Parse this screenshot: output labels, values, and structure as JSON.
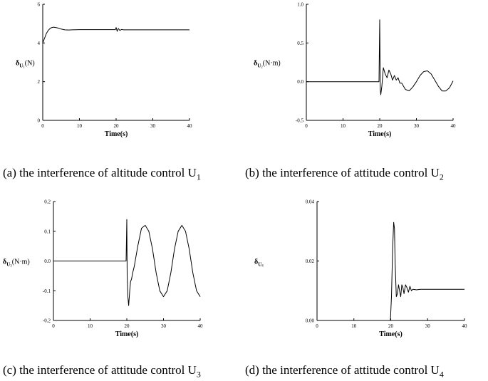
{
  "captions": [
    {
      "text": "(a) the interference of altitude control U",
      "sub": "1"
    },
    {
      "text": "(b) the interference of attitude control U",
      "sub": "2"
    },
    {
      "text": "(c) the interference of attitude control U",
      "sub": "3"
    },
    {
      "text": "(d) the interference of attitude control U",
      "sub": "4"
    }
  ],
  "chart_data": [
    {
      "type": "line",
      "xlabel": "Time(s)",
      "ylabel": {
        "prefix": "δ",
        "sub": "U",
        "subsub": "1",
        "unit": "(N)"
      },
      "xlim": [
        0,
        40
      ],
      "ylim": [
        0,
        6
      ],
      "xticks": [
        0,
        10,
        20,
        30,
        40
      ],
      "yticks": [
        0,
        2,
        4,
        6
      ],
      "ytick_labels": [
        "0",
        "2",
        "4",
        "6"
      ],
      "series": [
        {
          "x": [
            0,
            0.5,
            1,
            1.5,
            2,
            2.5,
            3,
            3.5,
            4,
            5,
            6,
            7,
            8,
            10,
            15,
            19.8,
            20,
            20.3,
            20.6,
            21,
            21.5,
            22,
            25,
            30,
            40
          ],
          "y": [
            4.0,
            4.25,
            4.5,
            4.65,
            4.75,
            4.8,
            4.82,
            4.8,
            4.78,
            4.72,
            4.68,
            4.67,
            4.68,
            4.69,
            4.69,
            4.69,
            4.8,
            4.6,
            4.75,
            4.65,
            4.7,
            4.68,
            4.68,
            4.68,
            4.68
          ]
        }
      ]
    },
    {
      "type": "line",
      "xlabel": "Time(s)",
      "ylabel": {
        "prefix": "δ",
        "sub": "U",
        "subsub": "2",
        "unit": "(N·m)"
      },
      "xlim": [
        0,
        40
      ],
      "ylim": [
        -0.5,
        1.0
      ],
      "xticks": [
        0,
        10,
        20,
        30,
        40
      ],
      "yticks": [
        -0.5,
        0,
        0.5,
        1.0
      ],
      "ytick_labels": [
        "-0.5",
        "0.0",
        "0.5",
        "1.0"
      ],
      "series": [
        {
          "x": [
            0,
            19.8,
            20,
            20.15,
            20.3,
            20.6,
            21,
            21.5,
            22,
            22.5,
            23,
            23.5,
            24,
            24.5,
            25,
            25.5,
            26,
            27,
            28,
            29,
            30,
            31,
            32,
            33,
            34,
            35,
            36,
            37,
            38,
            39,
            40
          ],
          "y": [
            0,
            0,
            0.8,
            -0.1,
            -0.17,
            -0.05,
            0.18,
            0.1,
            0.05,
            0.15,
            0.1,
            0.02,
            0.08,
            0.02,
            0.05,
            -0.02,
            -0.02,
            -0.1,
            -0.12,
            -0.07,
            0,
            0.08,
            0.13,
            0.14,
            0.1,
            0.02,
            -0.06,
            -0.12,
            -0.12,
            -0.08,
            0.01
          ]
        }
      ]
    },
    {
      "type": "line",
      "xlabel": "Time(s)",
      "ylabel": {
        "prefix": "δ",
        "sub": "U",
        "subsub": "3",
        "unit": "(N·m)"
      },
      "xlim": [
        0,
        40
      ],
      "ylim": [
        -0.2,
        0.2
      ],
      "xticks": [
        0,
        10,
        20,
        30,
        40
      ],
      "yticks": [
        -0.2,
        -0.1,
        0,
        0.1,
        0.2
      ],
      "ytick_labels": [
        "-0.2",
        "-0.1",
        "0.0",
        "0.1",
        "0.2"
      ],
      "series": [
        {
          "x": [
            0,
            19.8,
            20,
            20.1,
            20.3,
            20.5,
            20.8,
            21,
            21.3,
            21.6,
            22,
            23,
            24,
            25,
            26,
            27,
            28,
            29,
            30,
            31,
            32,
            33,
            34,
            35,
            36,
            37,
            38,
            39,
            40
          ],
          "y": [
            0,
            0,
            0.14,
            -0.05,
            -0.12,
            -0.15,
            -0.1,
            -0.07,
            -0.06,
            -0.04,
            -0.02,
            0.05,
            0.11,
            0.12,
            0.1,
            0.04,
            -0.04,
            -0.1,
            -0.12,
            -0.1,
            -0.04,
            0.04,
            0.1,
            0.12,
            0.1,
            0.04,
            -0.04,
            -0.1,
            -0.12
          ]
        }
      ]
    },
    {
      "type": "line",
      "xlabel": "Time(s)",
      "ylabel": {
        "prefix": "δ",
        "sub": "U",
        "subsub": "4",
        "unit": ""
      },
      "xlim": [
        0,
        40
      ],
      "ylim": [
        0,
        0.04
      ],
      "xticks": [
        0,
        10,
        20,
        30,
        40
      ],
      "yticks": [
        0,
        0.02,
        0.04
      ],
      "ytick_labels": [
        "0.00",
        "0.02",
        "0.04"
      ],
      "series": [
        {
          "x": [
            0,
            19.9,
            20.2,
            20.5,
            20.8,
            21,
            21.2,
            21.5,
            21.8,
            22.1,
            22.4,
            22.7,
            23,
            23.3,
            23.6,
            24,
            24.4,
            24.8,
            25.2,
            25.6,
            26,
            27,
            28,
            30,
            40
          ],
          "y": [
            0,
            0,
            0.008,
            0.024,
            0.033,
            0.031,
            0.019,
            0.008,
            0.009,
            0.012,
            0.01,
            0.008,
            0.012,
            0.011,
            0.009,
            0.012,
            0.011,
            0.0095,
            0.0115,
            0.01,
            0.0105,
            0.0103,
            0.0105,
            0.0105,
            0.0105
          ]
        }
      ]
    }
  ]
}
